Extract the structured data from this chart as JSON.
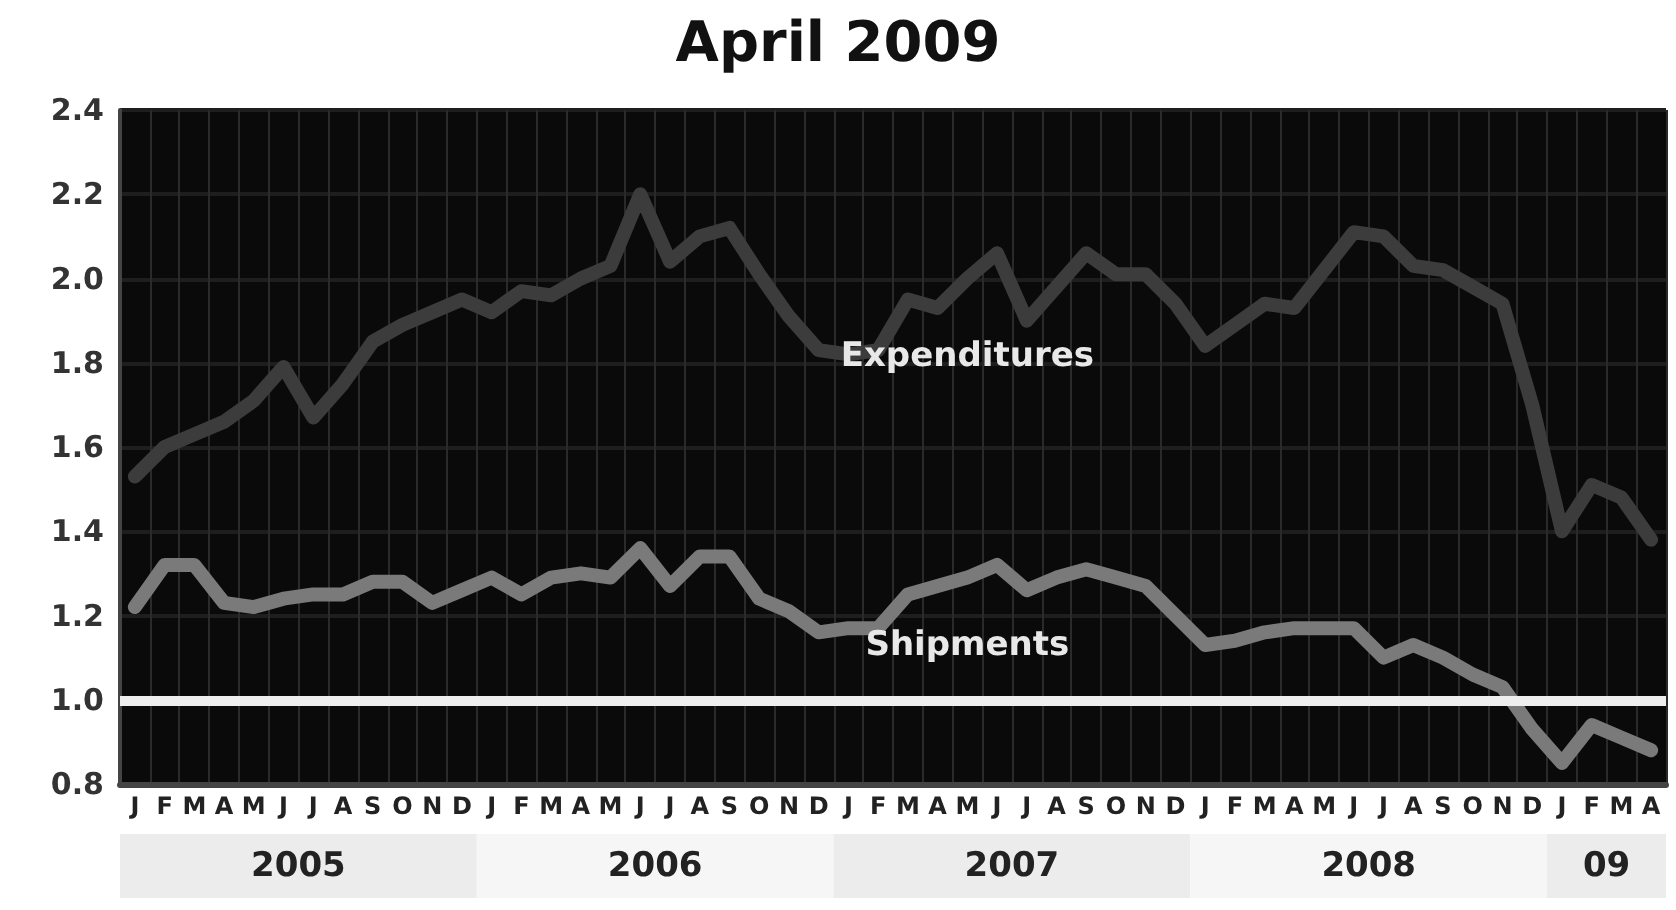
{
  "chart_data": {
    "type": "line",
    "title": "April 2009",
    "categories": [
      "J",
      "F",
      "M",
      "A",
      "M",
      "J",
      "J",
      "A",
      "S",
      "O",
      "N",
      "D",
      "J",
      "F",
      "M",
      "A",
      "M",
      "J",
      "J",
      "A",
      "S",
      "O",
      "N",
      "D",
      "J",
      "F",
      "M",
      "A",
      "M",
      "J",
      "J",
      "A",
      "S",
      "O",
      "N",
      "D",
      "J",
      "F",
      "M",
      "A",
      "M",
      "J",
      "J",
      "A",
      "S",
      "O",
      "N",
      "D",
      "J",
      "F",
      "M",
      "A"
    ],
    "series": [
      {
        "name": "Expenditures",
        "color": "#3c3c3c",
        "values": [
          1.53,
          1.6,
          1.63,
          1.66,
          1.71,
          1.79,
          1.67,
          1.75,
          1.85,
          1.89,
          1.92,
          1.95,
          1.92,
          1.97,
          1.96,
          2.0,
          2.03,
          2.2,
          2.04,
          2.1,
          2.12,
          2.01,
          1.91,
          1.83,
          1.82,
          1.83,
          1.95,
          1.93,
          2.0,
          2.06,
          1.9,
          1.98,
          2.06,
          2.01,
          2.01,
          1.94,
          1.84,
          1.89,
          1.94,
          1.93,
          2.02,
          2.11,
          2.1,
          2.03,
          2.02,
          1.98,
          1.94,
          1.7,
          1.4,
          1.51,
          1.48,
          1.38
        ]
      },
      {
        "name": "Shipments",
        "color": "#7a7a7a",
        "values": [
          1.22,
          1.32,
          1.32,
          1.23,
          1.22,
          1.24,
          1.25,
          1.25,
          1.28,
          1.28,
          1.23,
          1.26,
          1.29,
          1.25,
          1.29,
          1.3,
          1.29,
          1.36,
          1.27,
          1.34,
          1.34,
          1.24,
          1.21,
          1.16,
          1.17,
          1.17,
          1.25,
          1.27,
          1.29,
          1.32,
          1.26,
          1.29,
          1.31,
          1.29,
          1.27,
          1.2,
          1.13,
          1.14,
          1.16,
          1.17,
          1.17,
          1.17,
          1.1,
          1.13,
          1.1,
          1.06,
          1.03,
          0.93,
          0.85,
          0.94,
          0.91,
          0.88
        ]
      }
    ],
    "ylim": [
      0.8,
      2.4
    ],
    "yticks": [
      {
        "value": 0.8,
        "label": "0.8"
      },
      {
        "value": 1,
        "label": "1.0"
      },
      {
        "value": 1.2,
        "label": "1.2"
      },
      {
        "value": 1.4,
        "label": "1.4"
      },
      {
        "value": 1.6,
        "label": "1.6"
      },
      {
        "value": 1.8,
        "label": "1.8"
      },
      {
        "value": 2,
        "label": "2.0"
      },
      {
        "value": 2.2,
        "label": "2.2"
      },
      {
        "value": 2.4,
        "label": "2.4"
      }
    ],
    "grid": true,
    "legend": false,
    "marker": "none",
    "line_style": "solid",
    "ref_lines": [
      {
        "axis": "y",
        "value": 1.0,
        "color": "#eeeeee"
      }
    ],
    "annotations": [
      "2005",
      "2006",
      "2007",
      "2008",
      "09"
    ]
  }
}
